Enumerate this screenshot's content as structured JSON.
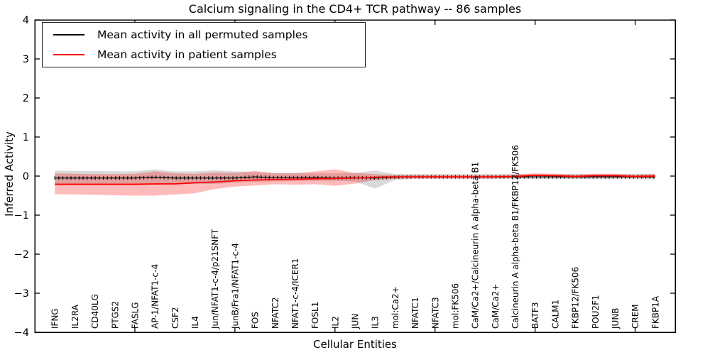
{
  "chart_data": {
    "type": "line",
    "title": "Calcium signaling in the CD4+ TCR pathway -- 86 samples",
    "xlabel": "Cellular Entities",
    "ylabel": "Inferred Activity",
    "ylim": [
      -4,
      4
    ],
    "xlim": [
      0,
      32
    ],
    "yticks": [
      4,
      3,
      2,
      1,
      0,
      -1,
      -2,
      -3,
      -4
    ],
    "xtick_positions": [
      5,
      10,
      15,
      20,
      25,
      30
    ],
    "grid": false,
    "legend_position": "upper left",
    "background_color": "#ffffff",
    "axis_color": "#000000",
    "categories": [
      "IFNG",
      "IL2RA",
      "CD40LG",
      "PTGS2",
      "FASLG",
      "AP-1/NFAT1-c-4",
      "CSF2",
      "IL4",
      "Jun/NFAT1-c-4/p21SNFT",
      "JunB/Fra1/NFAT1-c-4",
      "FOS",
      "NFATC2",
      "NFAT1-c-4/ICER1",
      "FOSL1",
      "IL2",
      "JUN",
      "IL3",
      "mol:Ca2+",
      "NFATC1",
      "NFATC3",
      "mol:FK506",
      "CaM/Ca2+/Calcineurin A alpha-beta B1",
      "CaM/Ca2+",
      "Calcineurin A alpha-beta B1/FKBP12/FK506",
      "BATF3",
      "CALM1",
      "FKBP12/FK506",
      "POU2F1",
      "JUNB",
      "CREM",
      "FKBP1A"
    ],
    "series": [
      {
        "name": "Mean activity in all permuted samples",
        "color": "#000000",
        "style": "solid-with-tick-markers",
        "values": [
          -0.05,
          -0.05,
          -0.05,
          -0.05,
          -0.05,
          -0.03,
          -0.05,
          -0.05,
          -0.05,
          -0.05,
          -0.02,
          -0.04,
          -0.04,
          -0.04,
          -0.05,
          -0.04,
          -0.05,
          -0.03,
          -0.02,
          -0.02,
          -0.02,
          -0.02,
          -0.02,
          -0.02,
          -0.02,
          -0.02,
          -0.02,
          -0.02,
          -0.02,
          -0.02,
          -0.02
        ]
      },
      {
        "name": "Mean activity in patient samples",
        "color": "#ff0000",
        "style": "solid",
        "values": [
          -0.21,
          -0.21,
          -0.21,
          -0.21,
          -0.21,
          -0.2,
          -0.2,
          -0.17,
          -0.15,
          -0.12,
          -0.1,
          -0.09,
          -0.08,
          -0.07,
          -0.06,
          -0.05,
          -0.03,
          -0.02,
          -0.02,
          -0.02,
          -0.02,
          -0.02,
          -0.02,
          -0.01,
          0.02,
          0.01,
          -0.01,
          0.01,
          0.01,
          -0.01,
          0.0
        ]
      }
    ],
    "bands": [
      {
        "name": "permuted-samples-spread",
        "color": "rgba(128,128,128,0.30)",
        "upper": [
          0.14,
          0.13,
          0.13,
          0.12,
          0.12,
          0.17,
          0.12,
          0.12,
          0.15,
          0.12,
          0.1,
          0.08,
          0.08,
          0.07,
          0.07,
          0.08,
          0.14,
          0.05,
          0.05,
          0.05,
          0.05,
          0.05,
          0.05,
          0.05,
          0.05,
          0.05,
          0.05,
          0.05,
          0.05,
          0.05,
          0.06
        ],
        "lower": [
          -0.2,
          -0.2,
          -0.2,
          -0.2,
          -0.2,
          -0.22,
          -0.2,
          -0.2,
          -0.2,
          -0.17,
          -0.15,
          -0.13,
          -0.13,
          -0.12,
          -0.12,
          -0.14,
          -0.32,
          -0.1,
          -0.07,
          -0.07,
          -0.07,
          -0.07,
          -0.07,
          -0.07,
          -0.08,
          -0.08,
          -0.07,
          -0.08,
          -0.08,
          -0.08,
          -0.09
        ]
      },
      {
        "name": "patient-samples-spread",
        "color": "rgba(255,0,0,0.27)",
        "upper": [
          0.07,
          0.06,
          0.05,
          0.05,
          0.06,
          0.12,
          0.07,
          0.06,
          0.09,
          0.08,
          0.13,
          0.07,
          0.07,
          0.12,
          0.17,
          0.08,
          0.05,
          0.03,
          0.03,
          0.03,
          0.03,
          0.03,
          0.03,
          0.04,
          0.07,
          0.06,
          0.04,
          0.06,
          0.06,
          0.04,
          0.05
        ],
        "lower": [
          -0.46,
          -0.47,
          -0.48,
          -0.49,
          -0.5,
          -0.5,
          -0.47,
          -0.44,
          -0.33,
          -0.27,
          -0.24,
          -0.21,
          -0.22,
          -0.21,
          -0.25,
          -0.19,
          -0.1,
          -0.07,
          -0.06,
          -0.06,
          -0.06,
          -0.06,
          -0.06,
          -0.05,
          -0.03,
          -0.04,
          -0.05,
          -0.04,
          -0.04,
          -0.05,
          -0.05
        ]
      }
    ]
  }
}
